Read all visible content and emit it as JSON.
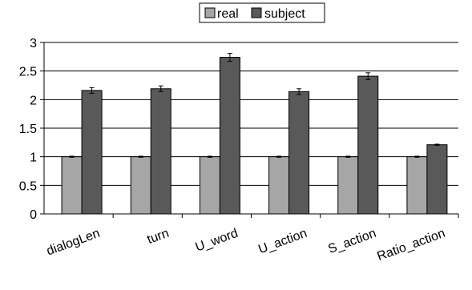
{
  "chart_data": {
    "type": "bar",
    "title": "",
    "xlabel": "",
    "ylabel": "",
    "categories": [
      "dialogLen",
      "turn",
      "U_word",
      "U_action",
      "S_action",
      "Ratio_action"
    ],
    "series": [
      {
        "name": "real",
        "values": [
          1.0,
          1.0,
          1.0,
          1.0,
          1.0,
          1.0
        ],
        "errors": [
          0.01,
          0.01,
          0.01,
          0.01,
          0.01,
          0.01
        ],
        "color": "#a6a6a6"
      },
      {
        "name": "subject",
        "values": [
          2.16,
          2.19,
          2.74,
          2.14,
          2.41,
          1.21
        ],
        "errors": [
          0.05,
          0.05,
          0.07,
          0.05,
          0.06,
          0.01
        ],
        "color": "#595959"
      }
    ],
    "ylim": [
      0,
      3
    ],
    "yticks": [
      "0",
      "0.5",
      "1",
      "1.5",
      "2",
      "2.5",
      "3"
    ],
    "grid": true,
    "legend_position": "top-center"
  }
}
